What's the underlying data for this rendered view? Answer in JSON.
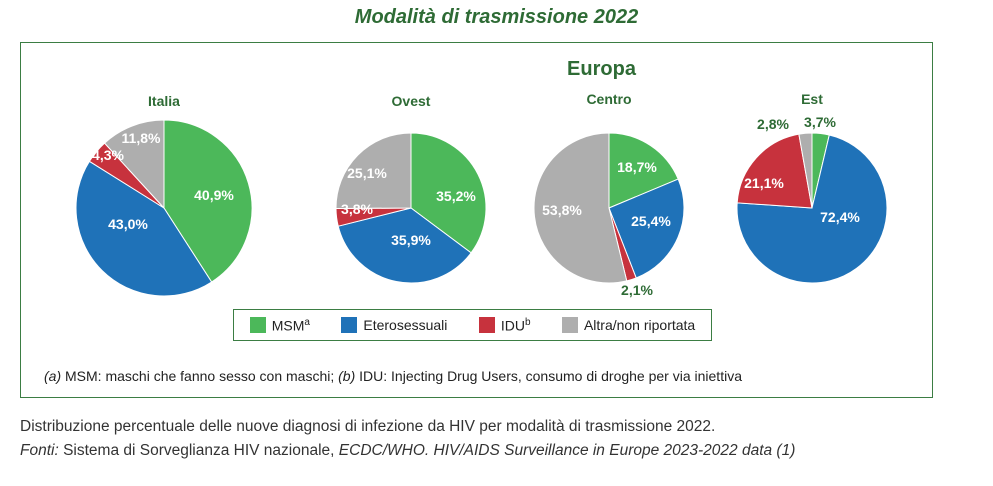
{
  "chart_data": {
    "type": "pie",
    "title": "Modalità di trasmissione 2022",
    "region_label": "Europa",
    "legend_placement": "bottom",
    "categories": [
      {
        "label": "MSM",
        "sup": "a",
        "color": "#4cb85a"
      },
      {
        "label": "Eterosessuali",
        "sup": "",
        "color": "#1f72b8"
      },
      {
        "label": "IDU",
        "sup": "b",
        "color": "#c7323d"
      },
      {
        "label": "Altra/non riportata",
        "sup": "",
        "color": "#aeaeae"
      }
    ],
    "pies": [
      {
        "name": "Italia",
        "values": [
          40.9,
          43.0,
          4.3,
          11.8
        ],
        "labels": [
          "40,9%",
          "43,0%",
          "4,3%",
          "11,8%"
        ]
      },
      {
        "name": "Ovest",
        "values": [
          35.2,
          35.9,
          3.8,
          25.1
        ],
        "labels": [
          "35,2%",
          "35,9%",
          "3,8%",
          "25,1%"
        ]
      },
      {
        "name": "Centro",
        "values": [
          18.7,
          25.4,
          2.1,
          53.8
        ],
        "labels": [
          "18,7%",
          "25,4%",
          "2,1%",
          "53,8%"
        ]
      },
      {
        "name": "Est",
        "values": [
          3.7,
          72.4,
          21.1,
          2.8
        ],
        "labels": [
          "3,7%",
          "72,4%",
          "21,1%",
          "2,8%"
        ]
      }
    ]
  },
  "footnote": {
    "a_marker": "(a)",
    "a_text": " MSM: maschi che fanno sesso con maschi; ",
    "b_marker": "(b)",
    "b_text": " IDU: Injecting Drug Users, consumo di droghe per via iniettiva"
  },
  "caption": "Distribuzione percentuale delle nuove diagnosi di infezione da HIV per modalità di trasmissione 2022.",
  "sources": {
    "prefix": "Fonti:",
    "national": " Sistema di Sorveglianza HIV nazionale, ",
    "ecdc": "ECDC/WHO. HIV/AIDS Surveillance in Europe 2023-2022 data (1)"
  }
}
